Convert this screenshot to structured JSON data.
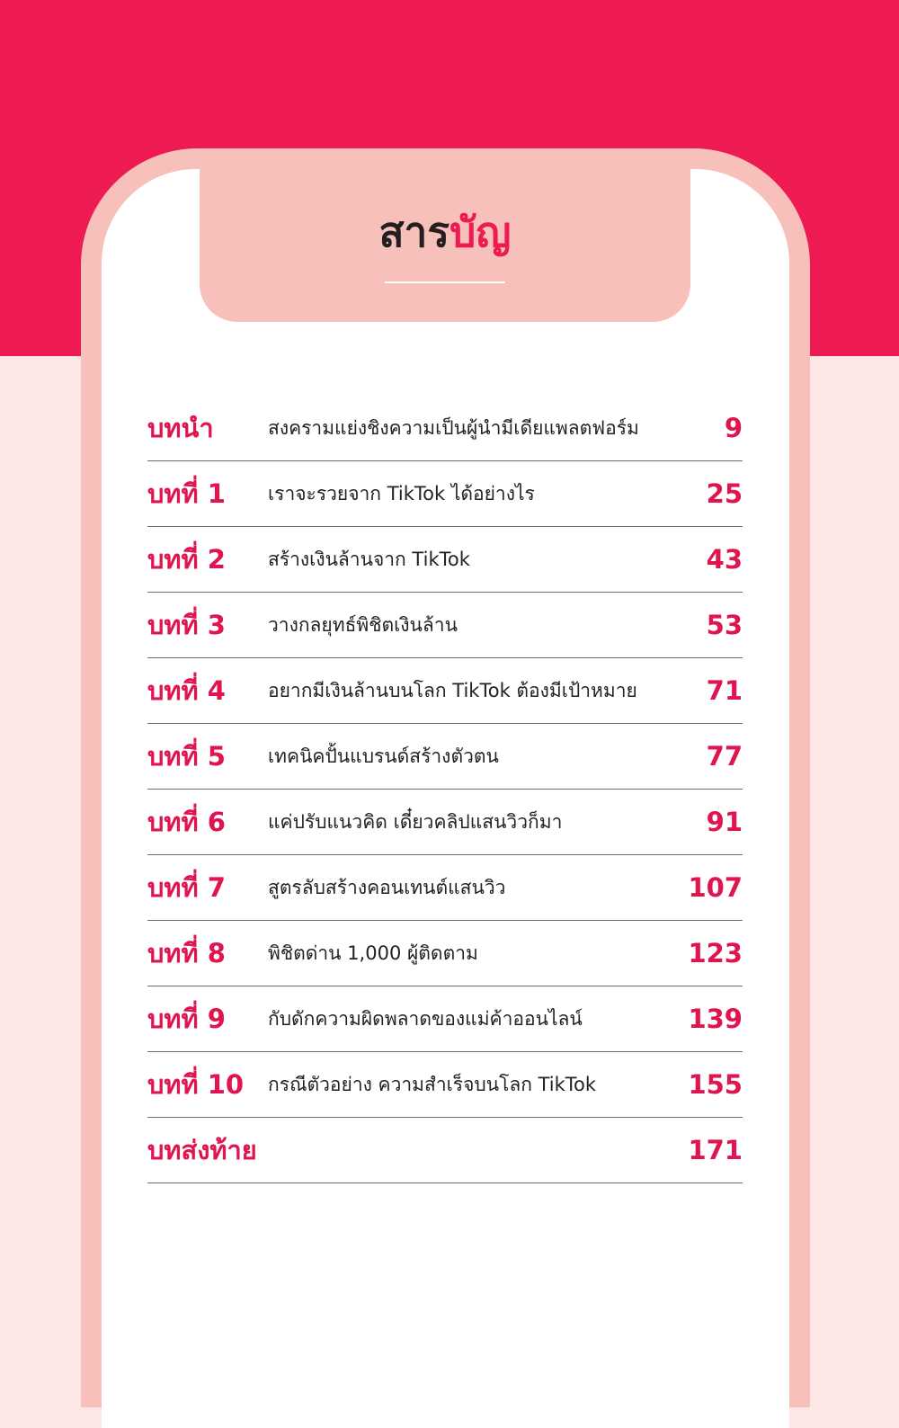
{
  "title": {
    "part1": "สาร",
    "part2": "บัญ"
  },
  "colors": {
    "accent": "#ee1a52",
    "frame": "#f8c0bb",
    "background": "#fde6e6"
  },
  "toc": [
    {
      "chapter": "บทนำ",
      "title": "สงครามแย่งชิงความเป็นผู้นำมีเดียแพลตฟอร์ม",
      "page": "9"
    },
    {
      "chapter": "บทที่ 1",
      "title": "เราจะรวยจาก TikTok ได้อย่างไร",
      "page": "25"
    },
    {
      "chapter": "บทที่ 2",
      "title": "สร้างเงินล้านจาก TikTok",
      "page": "43"
    },
    {
      "chapter": "บทที่ 3",
      "title": "วางกลยุทธ์พิชิตเงินล้าน",
      "page": "53"
    },
    {
      "chapter": "บทที่ 4",
      "title": "อยากมีเงินล้านบนโลก TikTok ต้องมีเป้าหมาย",
      "page": "71"
    },
    {
      "chapter": "บทที่ 5",
      "title": "เทคนิคปั้นแบรนด์สร้างตัวตน",
      "page": "77"
    },
    {
      "chapter": "บทที่ 6",
      "title": "แค่ปรับแนวคิด เดี๋ยวคลิปแสนวิวก็มา",
      "page": "91"
    },
    {
      "chapter": "บทที่ 7",
      "title": "สูตรลับสร้างคอนเทนต์แสนวิว",
      "page": "107"
    },
    {
      "chapter": "บทที่ 8",
      "title": "พิชิตด่าน 1,000 ผู้ติดตาม",
      "page": "123"
    },
    {
      "chapter": "บทที่ 9",
      "title": "กับดักความผิดพลาดของแม่ค้าออนไลน์",
      "page": "139"
    },
    {
      "chapter": "บทที่ 10",
      "title": "กรณีตัวอย่าง ความสำเร็จบนโลก TikTok",
      "page": "155"
    },
    {
      "chapter": "บทส่งท้าย",
      "title": "",
      "page": "171"
    }
  ]
}
